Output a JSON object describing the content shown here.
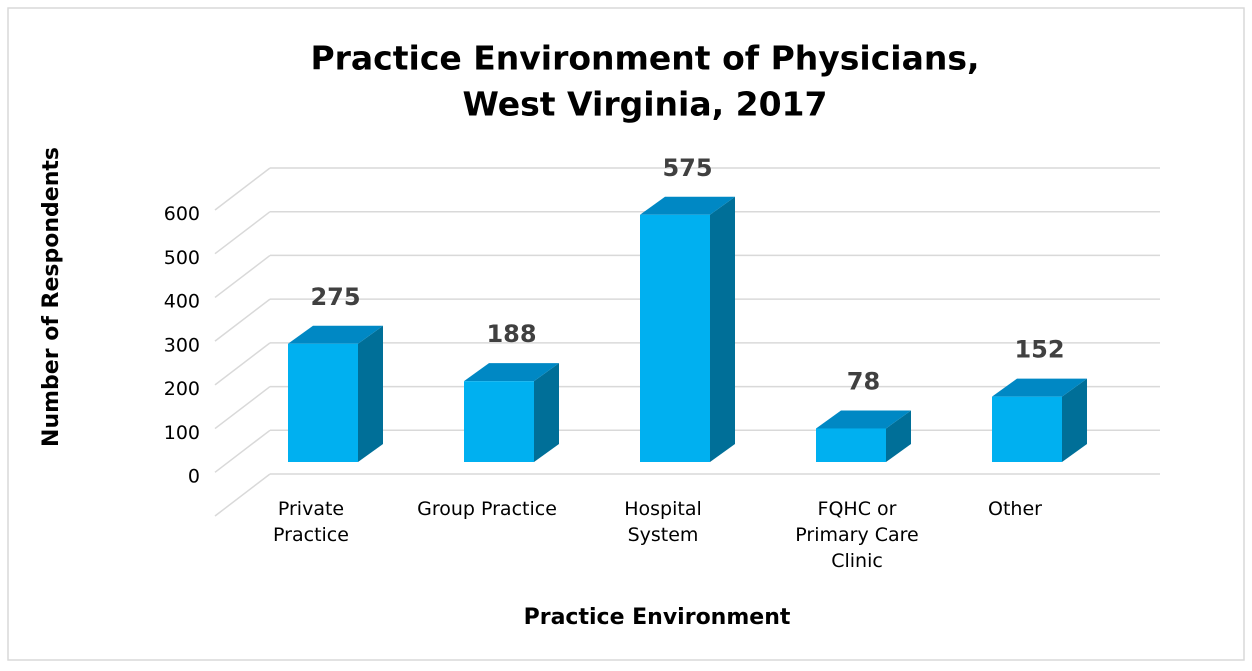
{
  "chart_data": {
    "type": "bar3d",
    "title": [
      "Practice Environment of Physicians,",
      "West Virginia, 2017"
    ],
    "x_label": "Practice Environment",
    "y_label": "Number of Respondents",
    "categories": [
      "Private Practice",
      "Group Practice",
      "Hospital System",
      "FQHC or Primary Care Clinic",
      "Other"
    ],
    "values": [
      275,
      188,
      575,
      78,
      152
    ],
    "color": "#00b0f0",
    "ylim": [
      0,
      700
    ],
    "yticks": [
      0,
      100,
      200,
      300,
      400,
      500,
      600
    ],
    "grid": true
  }
}
